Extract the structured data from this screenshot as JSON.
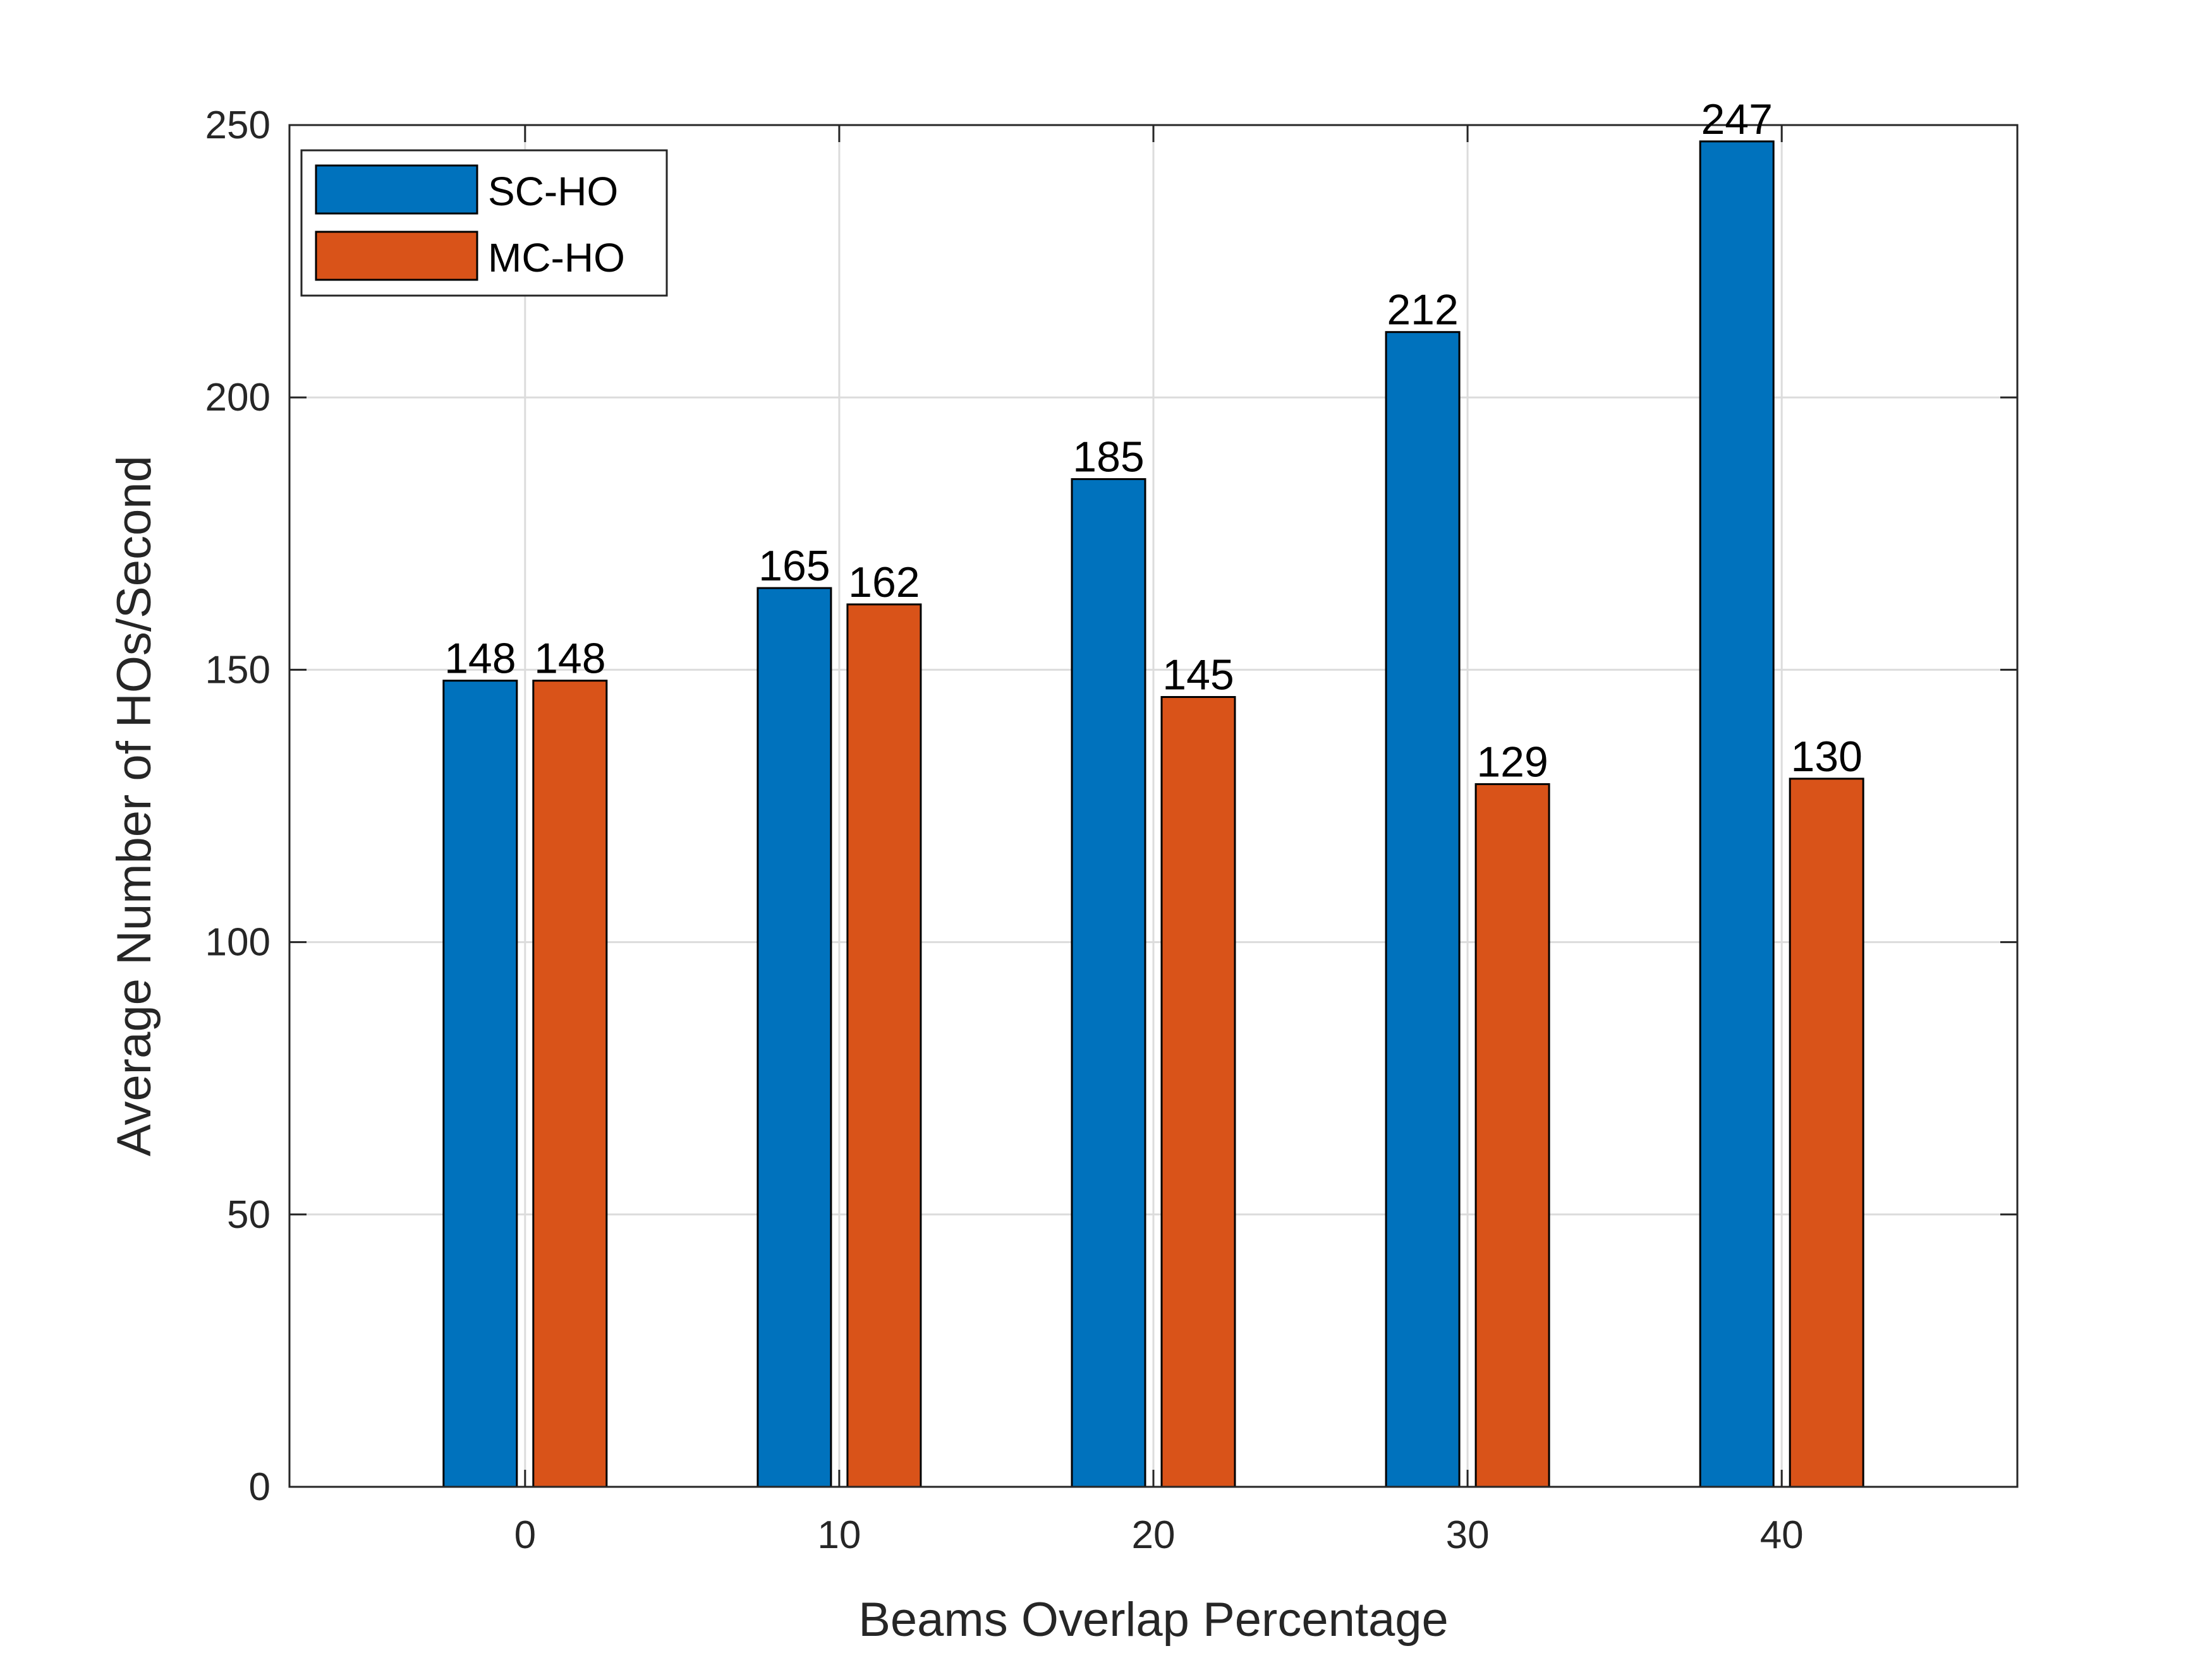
{
  "chart_data": {
    "type": "bar",
    "title": "",
    "xlabel": "Beams Overlap Percentage",
    "ylabel": "Average Number of HOs/Second",
    "categories": [
      "0",
      "10",
      "20",
      "30",
      "40"
    ],
    "x": [
      0,
      10,
      20,
      30,
      40
    ],
    "xlim": [
      -7.5,
      47.5
    ],
    "ylim": [
      0,
      250
    ],
    "yticks": [
      0,
      50,
      100,
      150,
      200,
      250
    ],
    "grid": true,
    "legend_position": "top-left",
    "series": [
      {
        "name": "SC-HO",
        "color": "#0072BD",
        "values": [
          148,
          165,
          185,
          212,
          247
        ],
        "labels": [
          "148",
          "165",
          "185",
          "212",
          "247"
        ]
      },
      {
        "name": "MC-HO",
        "color": "#D95319",
        "values": [
          148,
          162,
          145,
          129,
          130
        ],
        "labels": [
          "148",
          "162",
          "145",
          "129",
          "130"
        ]
      }
    ]
  }
}
